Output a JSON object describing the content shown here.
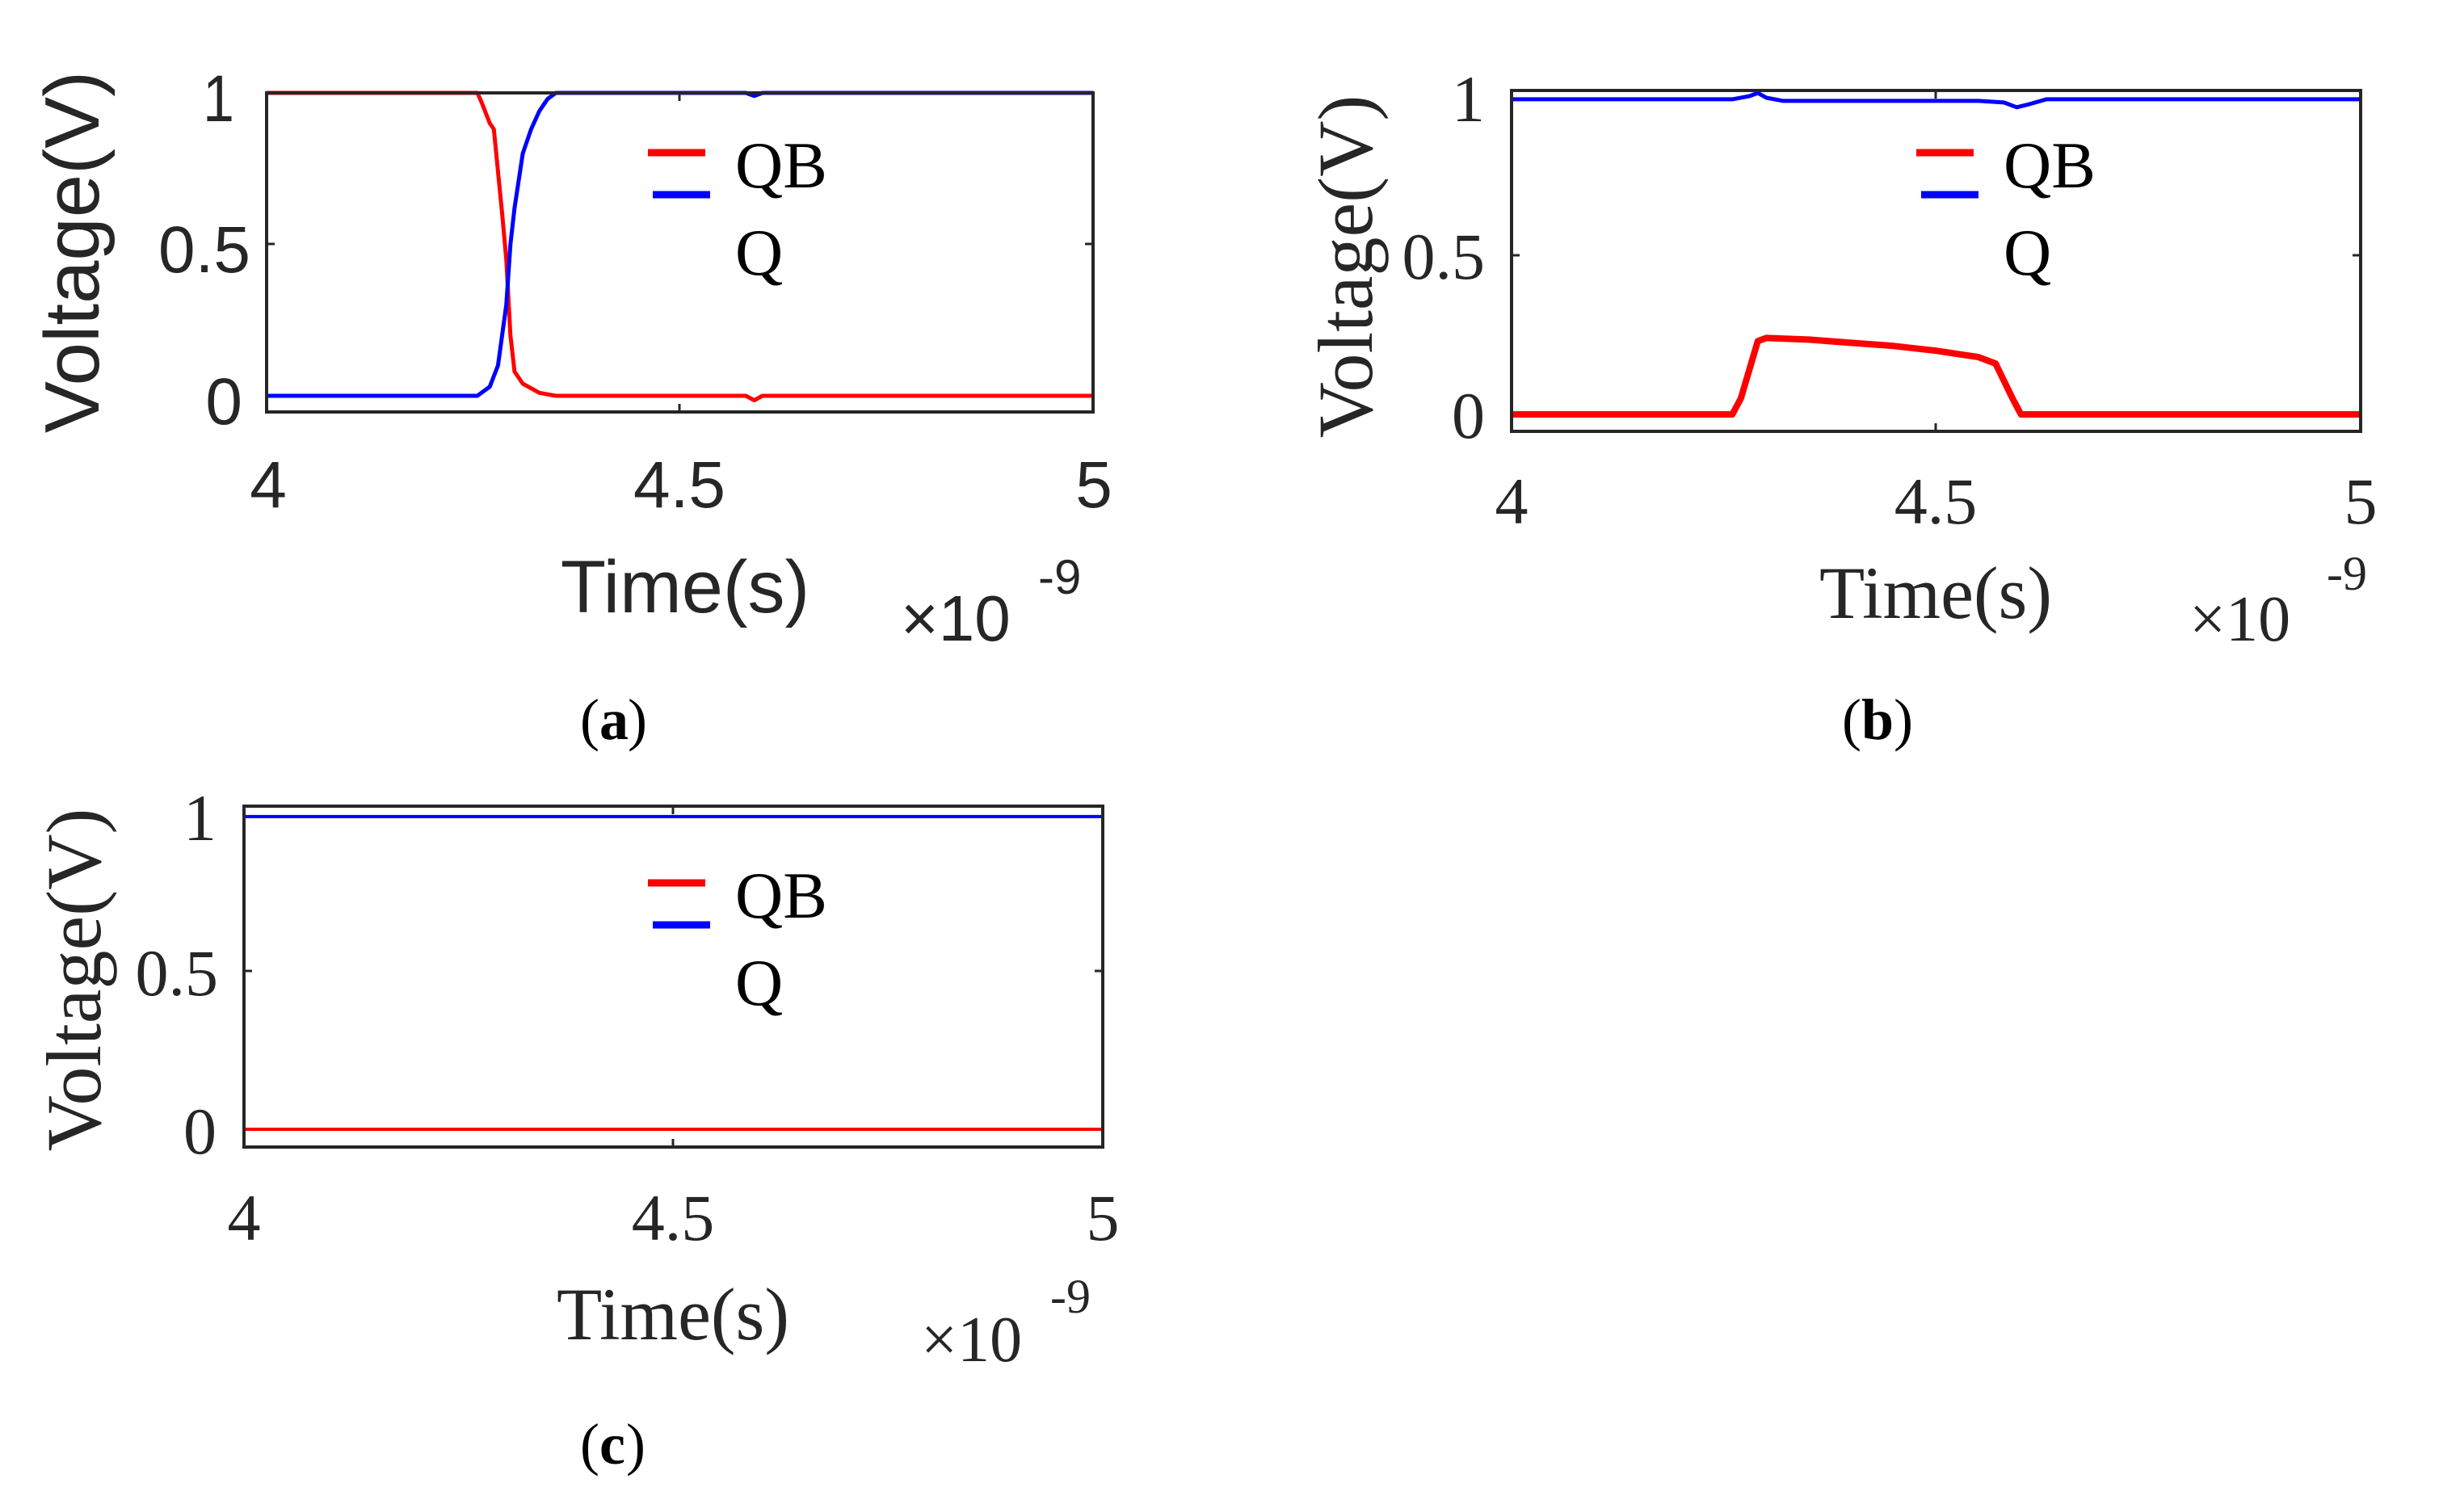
{
  "figure": {
    "panels": [
      {
        "id": "a",
        "caption_open": "(",
        "caption_letter": "a",
        "caption_close": ")",
        "ylabel": "Voltage(V)",
        "xlabel": "Time(s)",
        "x_exponent_prefix": "×10",
        "x_exponent": "-9",
        "yticks": [
          "0",
          "0.5",
          "1"
        ],
        "xticks": [
          "4",
          "4.5",
          "5"
        ],
        "legend": [
          "QB",
          "Q"
        ],
        "font": "sans"
      },
      {
        "id": "b",
        "caption_open": "(",
        "caption_letter": "b",
        "caption_close": ")",
        "ylabel": "Voltage(V)",
        "xlabel": "Time(s)",
        "x_exponent_prefix": "×10",
        "x_exponent": "-9",
        "yticks": [
          "0",
          "0.5",
          "1"
        ],
        "xticks": [
          "4",
          "4.5",
          "5"
        ],
        "legend": [
          "QB",
          "Q"
        ],
        "font": "serif"
      },
      {
        "id": "c",
        "caption_open": "(",
        "caption_letter": "c",
        "caption_close": ")",
        "ylabel": "Voltage(V)",
        "xlabel": "Time(s)",
        "x_exponent_prefix": "×10",
        "x_exponent": "-9",
        "yticks": [
          "0",
          "0.5",
          "1"
        ],
        "xticks": [
          "4",
          "4.5",
          "5"
        ],
        "legend": [
          "QB",
          "Q"
        ],
        "font": "serif"
      }
    ],
    "colors": {
      "QB": "#ff0000",
      "Q": "#0000ff",
      "axis": "#262626"
    }
  },
  "chart_data": [
    {
      "type": "line",
      "title": "(a)",
      "xlabel": "Time(s)",
      "ylabel": "Voltage(V)",
      "x_scale_note": "×10^-9",
      "xlim": [
        4,
        5
      ],
      "ylim": [
        -0.06,
        1
      ],
      "xticks": [
        4,
        4.5,
        5
      ],
      "yticks": [
        0,
        0.5,
        1
      ],
      "grid": false,
      "legend_position": "upper center",
      "series": [
        {
          "name": "QB",
          "color": "#ff0000",
          "x": [
            4.0,
            4.255,
            4.26,
            4.27,
            4.275,
            4.285,
            4.29,
            4.295,
            4.3,
            4.31,
            4.33,
            4.35,
            4.58,
            4.59,
            4.6,
            5.0
          ],
          "y": [
            1.0,
            1.0,
            0.97,
            0.9,
            0.88,
            0.6,
            0.45,
            0.2,
            0.08,
            0.04,
            0.01,
            0.0,
            0.0,
            -0.015,
            0.0,
            0.0
          ]
        },
        {
          "name": "Q",
          "color": "#0000ff",
          "x": [
            4.0,
            4.255,
            4.27,
            4.28,
            4.29,
            4.295,
            4.3,
            4.31,
            4.32,
            4.33,
            4.34,
            4.35,
            4.58,
            4.59,
            4.6,
            5.0
          ],
          "y": [
            0.0,
            0.0,
            0.03,
            0.1,
            0.3,
            0.5,
            0.62,
            0.8,
            0.88,
            0.94,
            0.98,
            1.0,
            1.0,
            0.99,
            1.0,
            1.0
          ]
        }
      ]
    },
    {
      "type": "line",
      "title": "(b)",
      "xlabel": "Time(s)",
      "ylabel": "Voltage(V)",
      "x_scale_note": "×10^-9",
      "xlim": [
        4,
        5
      ],
      "ylim": [
        -0.05,
        1.02
      ],
      "xticks": [
        4,
        4.5,
        5
      ],
      "yticks": [
        0,
        0.5,
        1
      ],
      "grid": false,
      "legend_position": "upper center",
      "series": [
        {
          "name": "QB",
          "color": "#ff0000",
          "x": [
            4.0,
            4.26,
            4.27,
            4.29,
            4.3,
            4.35,
            4.4,
            4.45,
            4.5,
            4.55,
            4.57,
            4.59,
            4.6,
            5.0
          ],
          "y": [
            0.0,
            0.0,
            0.05,
            0.23,
            0.24,
            0.235,
            0.225,
            0.215,
            0.2,
            0.18,
            0.16,
            0.05,
            0.0,
            0.0
          ]
        },
        {
          "name": "Q",
          "color": "#0000ff",
          "x": [
            4.0,
            4.26,
            4.28,
            4.29,
            4.3,
            4.32,
            4.55,
            4.58,
            4.595,
            4.61,
            4.63,
            5.0
          ],
          "y": [
            0.99,
            0.99,
            1.0,
            1.01,
            0.995,
            0.985,
            0.985,
            0.98,
            0.965,
            0.975,
            0.99,
            0.99
          ]
        }
      ]
    },
    {
      "type": "line",
      "title": "(c)",
      "xlabel": "Time(s)",
      "ylabel": "Voltage(V)",
      "x_scale_note": "×10^-9",
      "xlim": [
        4,
        5
      ],
      "ylim": [
        -0.05,
        1.01
      ],
      "xticks": [
        4,
        4.5,
        5
      ],
      "yticks": [
        0,
        0.5,
        1
      ],
      "grid": false,
      "legend_position": "upper center",
      "series": [
        {
          "name": "QB",
          "color": "#ff0000",
          "x": [
            4.0,
            5.0
          ],
          "y": [
            0.0,
            0.0
          ]
        },
        {
          "name": "Q",
          "color": "#0000ff",
          "x": [
            4.0,
            5.0
          ],
          "y": [
            0.99,
            0.99
          ]
        }
      ]
    }
  ]
}
